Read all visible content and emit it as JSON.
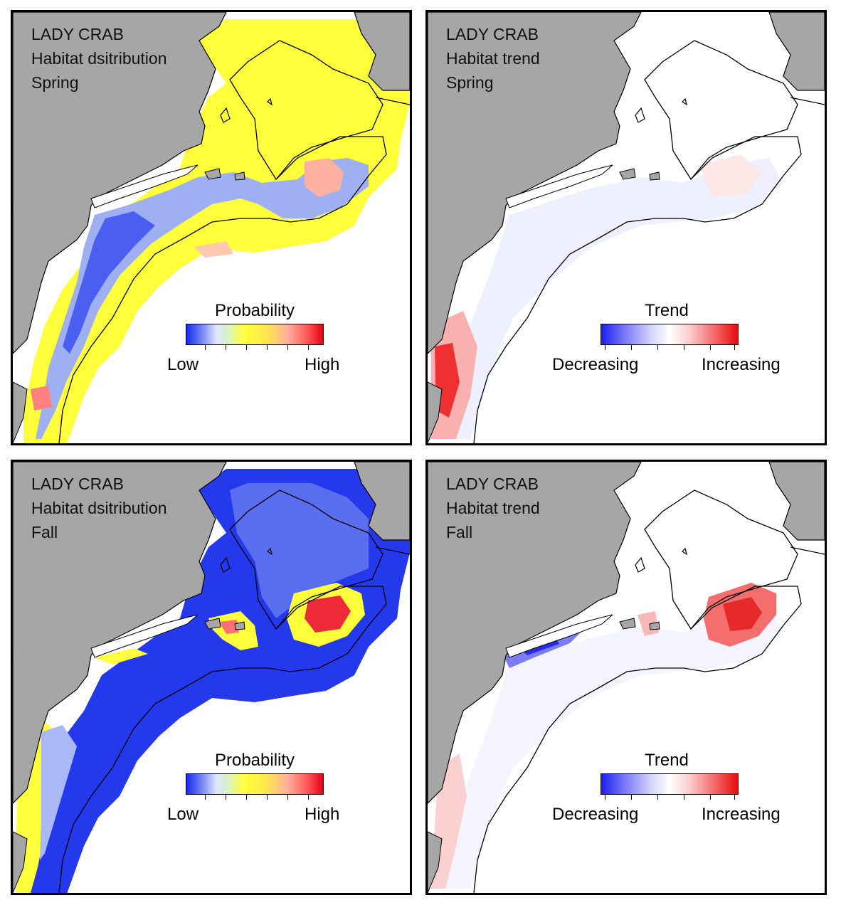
{
  "panels": [
    {
      "species": "LADY CRAB",
      "map_type": "Habitat dsitribution",
      "season": "Spring",
      "legend": {
        "title": "Probability",
        "low": "Low",
        "high": "High"
      },
      "kind": "probability"
    },
    {
      "species": "LADY CRAB",
      "map_type": "Habitat trend",
      "season": "Spring",
      "legend": {
        "title": "Trend",
        "low": "Decreasing",
        "high": "Increasing"
      },
      "kind": "trend"
    },
    {
      "species": "LADY CRAB",
      "map_type": "Habitat dsitribution",
      "season": "Fall",
      "legend": {
        "title": "Probability",
        "low": "Low",
        "high": "High"
      },
      "kind": "probability"
    },
    {
      "species": "LADY CRAB",
      "map_type": "Habitat trend",
      "season": "Fall",
      "legend": {
        "title": "Trend",
        "low": "Decreasing",
        "high": "Increasing"
      },
      "kind": "trend"
    }
  ],
  "colors": {
    "land": "#a6a6a6",
    "outline": "#000000",
    "prob_low": "#1428f0",
    "prob_mid": "#ffff3c",
    "prob_high": "#e80014",
    "trend_dec": "#1e1ef0",
    "trend_inc": "#e60a0a"
  }
}
